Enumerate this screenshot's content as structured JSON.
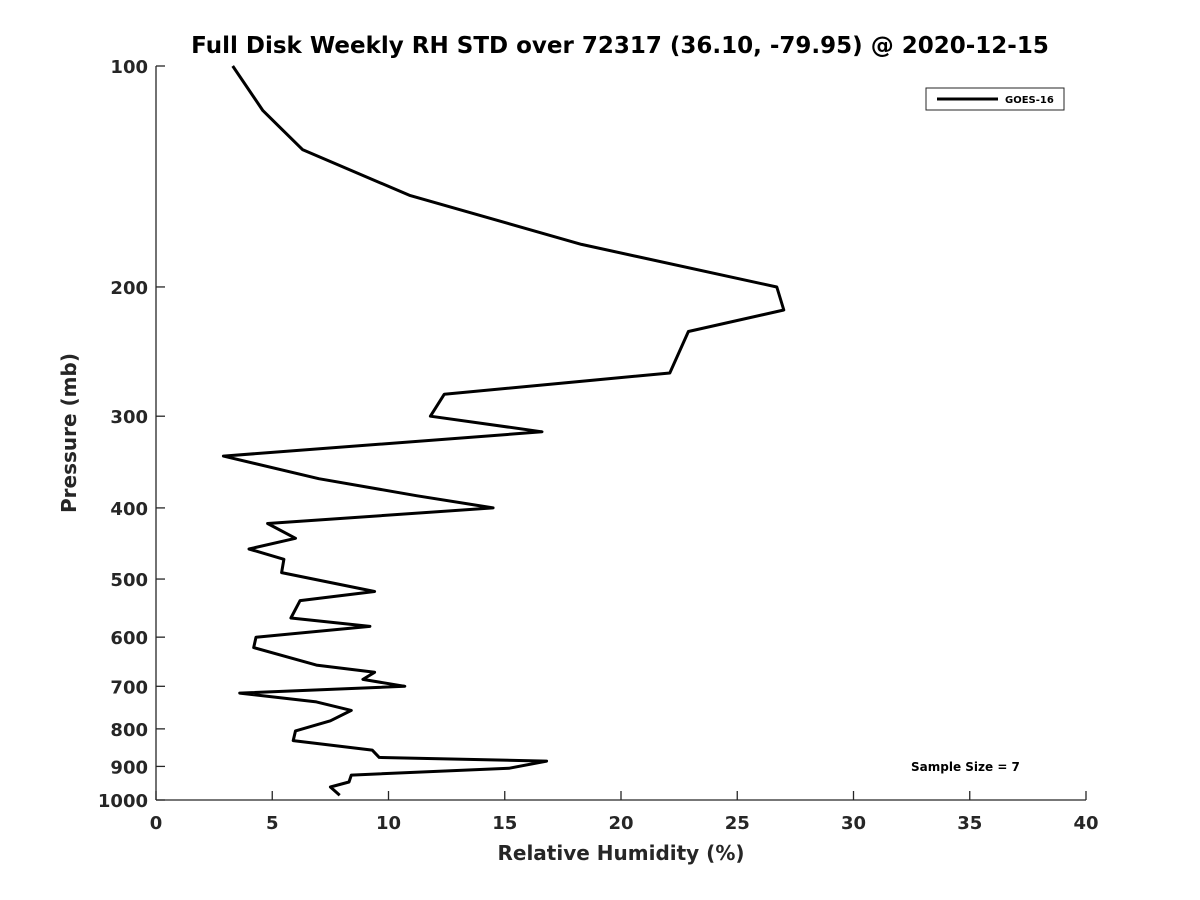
{
  "chart_data": {
    "type": "line",
    "title": "Full Disk Weekly RH STD over 72317 (36.10, -79.95) @ 2020-12-15",
    "xlabel": "Relative Humidity (%)",
    "ylabel": "Pressure (mb)",
    "xlim": [
      0,
      40
    ],
    "ylim": [
      100,
      1000
    ],
    "y_scale": "log",
    "y_reversed": true,
    "xticks": [
      0,
      5,
      10,
      15,
      20,
      25,
      30,
      35,
      40
    ],
    "yticks": [
      100,
      200,
      300,
      400,
      500,
      600,
      700,
      800,
      900,
      1000
    ],
    "grid": false,
    "legend_position": "top-right",
    "annotation": "Sample Size = 7",
    "series": [
      {
        "name": "GOES-16",
        "color": "#000000",
        "x": [
          3.3,
          4.6,
          6.3,
          10.9,
          18.3,
          26.7,
          27.0,
          22.9,
          22.1,
          12.4,
          11.8,
          16.6,
          2.9,
          7.0,
          11.2,
          14.5,
          4.8,
          6.0,
          4.0,
          5.5,
          5.4,
          9.4,
          6.2,
          5.8,
          9.2,
          4.3,
          4.2,
          6.9,
          9.4,
          8.9,
          10.7,
          3.6,
          6.9,
          8.4,
          7.5,
          6.0,
          5.9,
          9.3,
          9.6,
          16.8,
          15.2,
          8.4,
          8.3,
          7.5,
          7.9
        ],
        "y": [
          100,
          115,
          130,
          150,
          175,
          200,
          215,
          230,
          262,
          280,
          300,
          315,
          340,
          365,
          385,
          400,
          420,
          440,
          455,
          470,
          490,
          520,
          535,
          565,
          580,
          600,
          620,
          655,
          670,
          685,
          700,
          715,
          735,
          755,
          780,
          805,
          830,
          855,
          875,
          885,
          905,
          925,
          945,
          960,
          985
        ]
      }
    ]
  }
}
